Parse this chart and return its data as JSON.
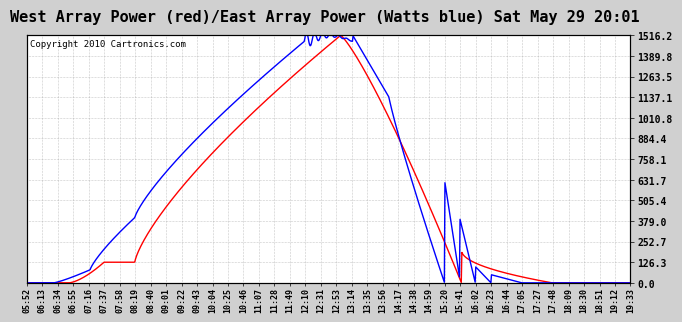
{
  "title": "West Array Power (red)/East Array Power (Watts blue) Sat May 29 20:01",
  "copyright": "Copyright 2010 Cartronics.com",
  "background_color": "#d0d0d0",
  "plot_bg_color": "#ffffff",
  "grid_color": "#999999",
  "yticks": [
    0.0,
    126.3,
    252.7,
    379.0,
    505.4,
    631.7,
    758.1,
    884.4,
    1010.8,
    1137.1,
    1263.5,
    1389.8,
    1516.2
  ],
  "xtick_labels": [
    "05:52",
    "06:13",
    "06:34",
    "06:55",
    "07:16",
    "07:37",
    "07:58",
    "08:19",
    "08:40",
    "09:01",
    "09:22",
    "09:43",
    "10:04",
    "10:25",
    "10:46",
    "11:07",
    "11:28",
    "11:49",
    "12:10",
    "12:31",
    "12:53",
    "13:14",
    "13:35",
    "13:56",
    "14:17",
    "14:38",
    "14:59",
    "15:20",
    "15:41",
    "16:02",
    "16:23",
    "16:44",
    "17:05",
    "17:27",
    "17:48",
    "18:09",
    "18:30",
    "18:51",
    "19:12",
    "19:33"
  ],
  "ymax": 1516.2,
  "ymin": 0.0,
  "red_line_color": "#ff0000",
  "blue_line_color": "#0000ff",
  "title_fontsize": 11,
  "tick_fontsize": 6,
  "copyright_fontsize": 6.5,
  "n_points": 1000
}
